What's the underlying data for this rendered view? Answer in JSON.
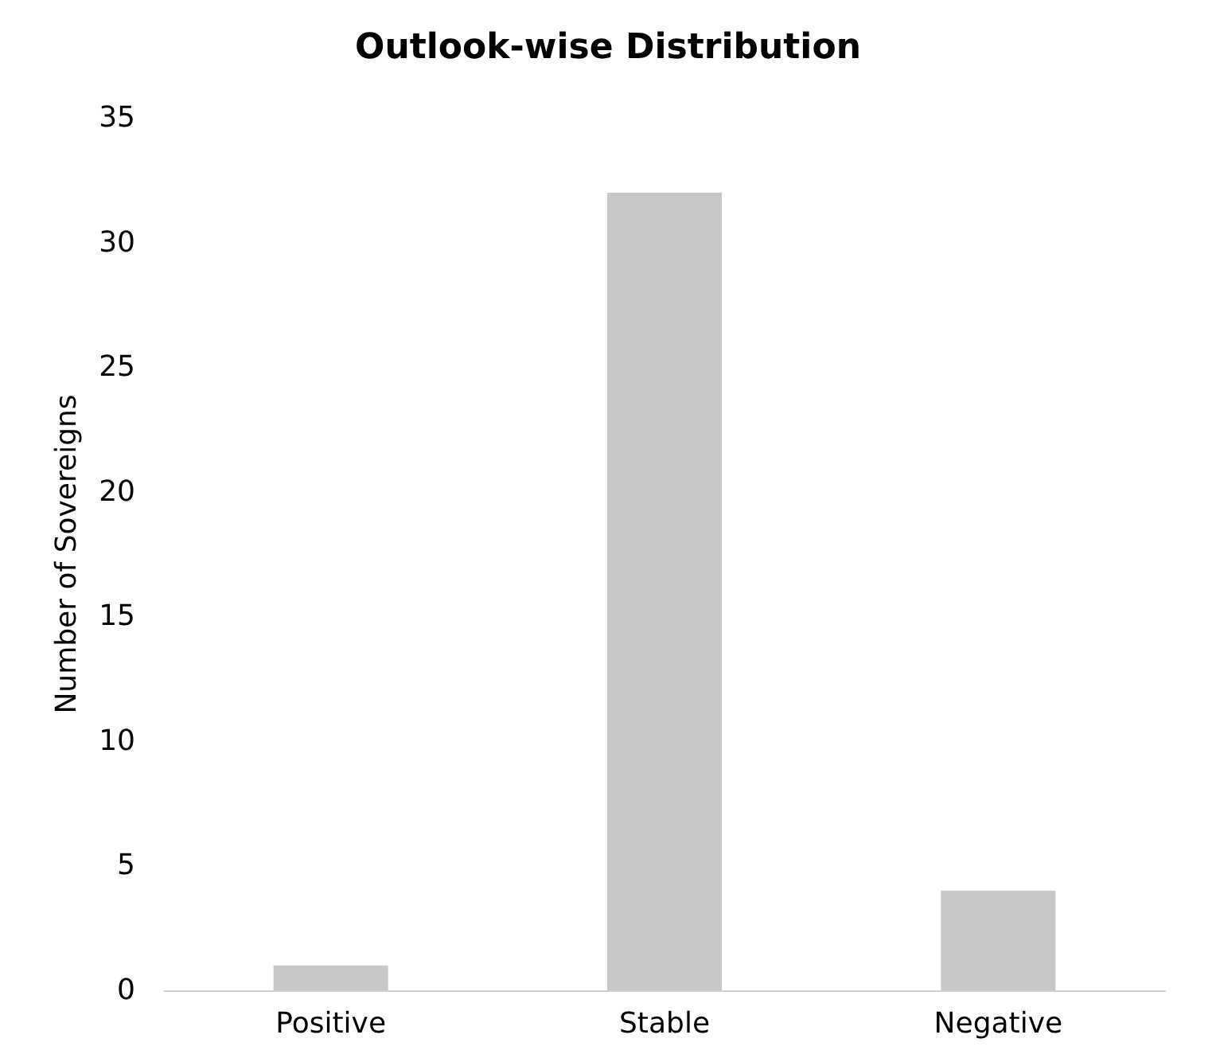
{
  "chart_data": {
    "type": "bar",
    "title": "Outlook-wise Distribution",
    "ylabel": "Number of Sovereigns",
    "categories": [
      "Positive",
      "Stable",
      "Negative"
    ],
    "values": [
      1,
      32,
      4
    ],
    "color": "#c8c8c8",
    "ylim": [
      0,
      35
    ],
    "yticks": [
      0,
      5,
      10,
      15,
      20,
      25,
      30,
      35
    ],
    "grid": false
  }
}
